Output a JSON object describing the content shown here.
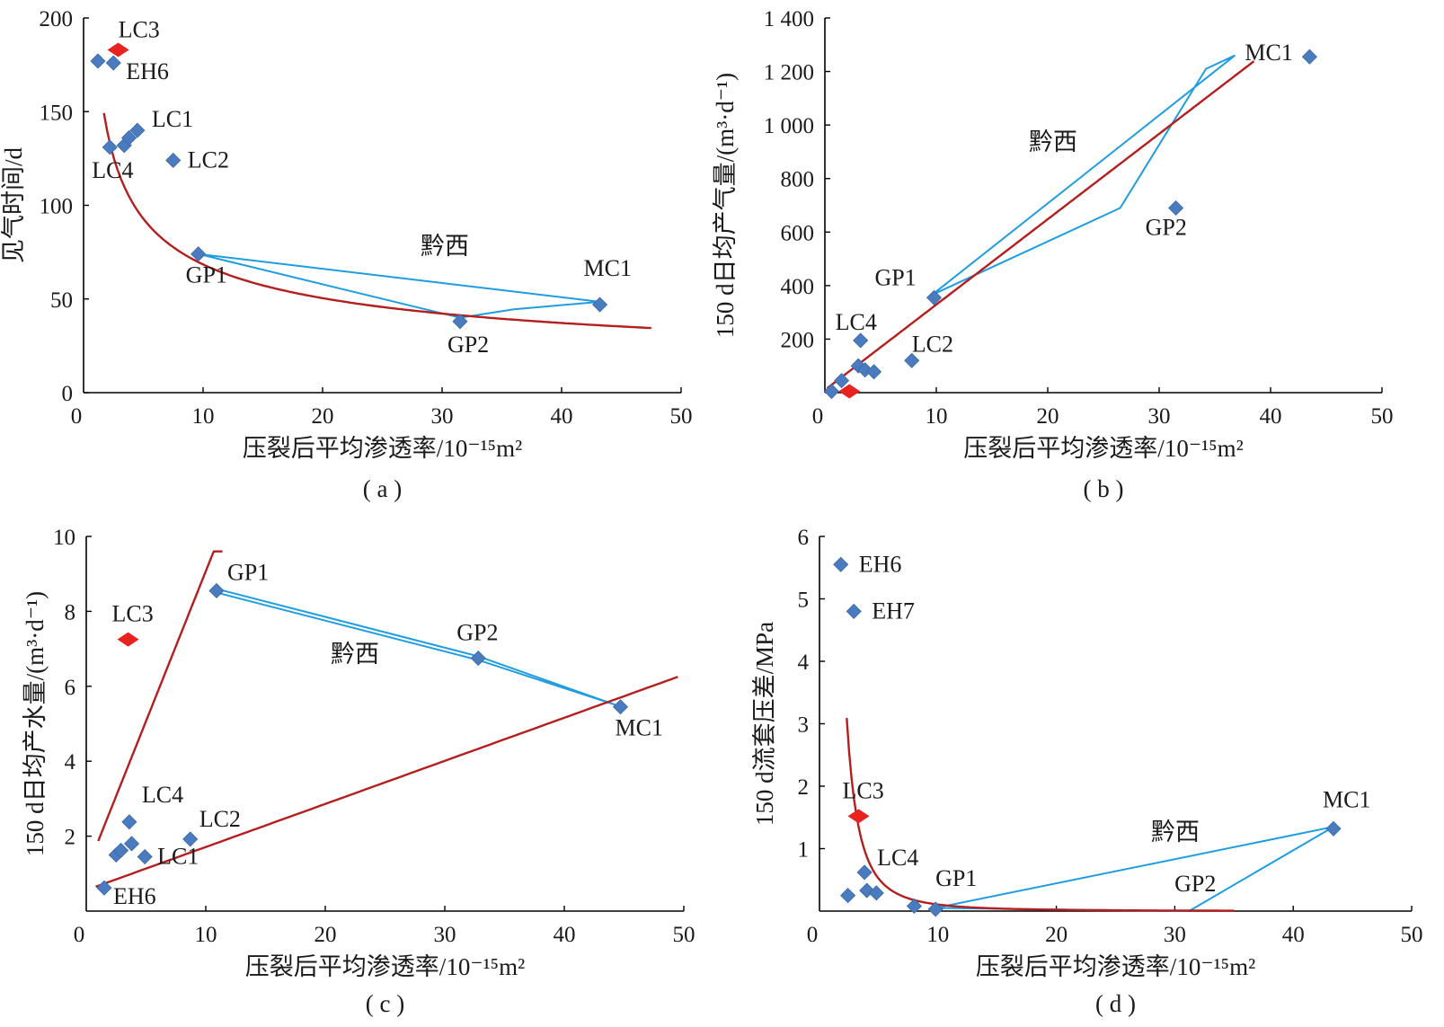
{
  "chart_data": [
    {
      "id": "a",
      "type": "scatter",
      "caption": "( a )",
      "xlabel": "压裂后平均渗透率/10⁻¹⁵m²",
      "ylabel": "见气时间/d",
      "xlim": [
        0,
        50
      ],
      "ylim": [
        0,
        200
      ],
      "xticks": [
        "10",
        "20",
        "30",
        "40",
        "50"
      ],
      "xzero": "0",
      "yticks": [
        "0",
        "50",
        "100",
        "150",
        "200"
      ],
      "grid": false,
      "legend": "none",
      "colors": {
        "point": "#4a7bbf",
        "highlight": "#e8231f",
        "fit": "#b41e1e",
        "envelope": "#1f9de0"
      },
      "points": [
        {
          "x": 1.2,
          "y": 177,
          "label": ""
        },
        {
          "x": 2.5,
          "y": 176,
          "label": "EH6"
        },
        {
          "x": 2.2,
          "y": 131,
          "label": "LC4"
        },
        {
          "x": 3.4,
          "y": 132,
          "label": ""
        },
        {
          "x": 3.8,
          "y": 136,
          "label": ""
        },
        {
          "x": 4.5,
          "y": 140,
          "label": "LC1"
        },
        {
          "x": 7.5,
          "y": 124,
          "label": "LC2"
        },
        {
          "x": 9.6,
          "y": 74,
          "label": "GP1"
        },
        {
          "x": 31.5,
          "y": 38,
          "label": "GP2"
        },
        {
          "x": 43.2,
          "y": 47,
          "label": "MC1"
        }
      ],
      "highlight": {
        "x": 2.9,
        "y": 183,
        "label": "LC3"
      },
      "region_label": "黔西",
      "fit_curves": [
        {
          "type": "power",
          "a": 188.5,
          "b": -0.44,
          "x_range": [
            1.7,
            47.5
          ]
        }
      ],
      "envelope": [
        [
          9.6,
          74
        ],
        [
          31.5,
          40
        ],
        [
          36,
          44.5
        ],
        [
          43.2,
          48.5
        ],
        [
          9.6,
          74
        ]
      ]
    },
    {
      "id": "b",
      "type": "scatter",
      "caption": "( b )",
      "xlabel": "压裂后平均渗透率/10⁻¹⁵m²",
      "ylabel": "150 d日均产气量/(m³·d⁻¹)",
      "xlim": [
        0,
        50
      ],
      "ylim": [
        0,
        1400
      ],
      "xticks": [
        "10",
        "20",
        "30",
        "40",
        "50"
      ],
      "xzero": "0",
      "yticks": [
        "200",
        "400",
        "600",
        "800",
        "1 000",
        "1 200",
        "1 400"
      ],
      "grid": false,
      "legend": "none",
      "colors": {
        "point": "#4a7bbf",
        "highlight": "#e8231f",
        "fit": "#b41e1e",
        "envelope": "#1f9de0"
      },
      "points": [
        {
          "x": 0.6,
          "y": 5,
          "label": ""
        },
        {
          "x": 1.5,
          "y": 45,
          "label": ""
        },
        {
          "x": 3.2,
          "y": 195,
          "label": "LC4"
        },
        {
          "x": 3.0,
          "y": 100,
          "label": ""
        },
        {
          "x": 3.6,
          "y": 85,
          "label": ""
        },
        {
          "x": 4.4,
          "y": 78,
          "label": ""
        },
        {
          "x": 7.8,
          "y": 120,
          "label": "LC2"
        },
        {
          "x": 9.8,
          "y": 355,
          "label": "GP1"
        },
        {
          "x": 31.5,
          "y": 690,
          "label": "GP2"
        },
        {
          "x": 43.5,
          "y": 1255,
          "label": "MC1"
        }
      ],
      "highlight": {
        "x": 2.2,
        "y": 5,
        "label": ""
      },
      "region_label": "黔西",
      "fit_curves": [
        {
          "type": "linear",
          "a": 31.9,
          "b": 10,
          "x_range": [
            0.2,
            38.5
          ]
        }
      ],
      "envelope": [
        [
          9.6,
          365
        ],
        [
          36.8,
          1260
        ],
        [
          34.2,
          1210
        ],
        [
          26.5,
          690
        ],
        [
          9.6,
          365
        ]
      ]
    },
    {
      "id": "c",
      "type": "scatter",
      "caption": "( c )",
      "xlabel": "压裂后平均渗透率/10⁻¹⁵m²",
      "ylabel": "150 d日均产水量/(m³·d⁻¹)",
      "xlim": [
        0,
        50
      ],
      "ylim": [
        0,
        10
      ],
      "xticks": [
        "10",
        "20",
        "30",
        "40",
        "50"
      ],
      "xzero": "0",
      "yticks": [
        "2",
        "4",
        "6",
        "8",
        "10"
      ],
      "grid": false,
      "legend": "none",
      "colors": {
        "point": "#4a7bbf",
        "highlight": "#e8231f",
        "fit": "#b41e1e",
        "envelope": "#1f9de0"
      },
      "points": [
        {
          "x": 1.5,
          "y": 0.62,
          "label": "EH6"
        },
        {
          "x": 2.5,
          "y": 1.5,
          "label": ""
        },
        {
          "x": 2.9,
          "y": 1.62,
          "label": ""
        },
        {
          "x": 3.8,
          "y": 1.8,
          "label": ""
        },
        {
          "x": 3.6,
          "y": 2.38,
          "label": "LC4"
        },
        {
          "x": 4.9,
          "y": 1.45,
          "label": "LC1"
        },
        {
          "x": 8.7,
          "y": 1.92,
          "label": "LC2"
        },
        {
          "x": 10.9,
          "y": 8.55,
          "label": "GP1"
        },
        {
          "x": 32.8,
          "y": 6.75,
          "label": "GP2"
        },
        {
          "x": 44.7,
          "y": 5.45,
          "label": "MC1"
        }
      ],
      "highlight": {
        "x": 3.5,
        "y": 7.25,
        "label": "LC3"
      },
      "region_label": "黔西",
      "fit_curves": [
        {
          "type": "linear",
          "a": 0.8,
          "b": 1.07,
          "x_range": [
            1.0,
            11.4
          ]
        },
        {
          "type": "linear",
          "a": 0.115,
          "b": 0.56,
          "x_range": [
            0.8,
            49.5
          ]
        }
      ],
      "envelope": [
        [
          10.9,
          8.6
        ],
        [
          32.8,
          6.8
        ],
        [
          44.3,
          5.5
        ],
        [
          32.8,
          6.7
        ],
        [
          10.9,
          8.5
        ]
      ]
    },
    {
      "id": "d",
      "type": "scatter",
      "caption": "( d )",
      "xlabel": "压裂后平均渗透率/10⁻¹⁵m²",
      "ylabel": "150 d流套压差/MPa",
      "xlim": [
        0,
        50
      ],
      "ylim": [
        0,
        6
      ],
      "xticks": [
        "10",
        "20",
        "30",
        "40",
        "50"
      ],
      "xzero": "0",
      "yticks": [
        "1",
        "2",
        "3",
        "4",
        "5",
        "6"
      ],
      "grid": false,
      "legend": "none",
      "colors": {
        "point": "#4a7bbf",
        "highlight": "#e8231f",
        "fit": "#b41e1e",
        "envelope": "#1f9de0"
      },
      "points": [
        {
          "x": 1.8,
          "y": 5.55,
          "label": "EH6"
        },
        {
          "x": 2.9,
          "y": 4.8,
          "label": "EH7"
        },
        {
          "x": 2.4,
          "y": 0.25,
          "label": ""
        },
        {
          "x": 3.8,
          "y": 0.62,
          "label": "LC4"
        },
        {
          "x": 4.0,
          "y": 0.33,
          "label": ""
        },
        {
          "x": 4.8,
          "y": 0.29,
          "label": ""
        },
        {
          "x": 8.0,
          "y": 0.08,
          "label": ""
        },
        {
          "x": 9.8,
          "y": 0.03,
          "label": "GP1"
        },
        {
          "x": 43.4,
          "y": 1.32,
          "label": "MC1"
        }
      ],
      "highlight": {
        "x": 3.3,
        "y": 1.52,
        "label": "LC3"
      },
      "region_label": "黔西",
      "extra_labels": [
        {
          "x": 31.5,
          "y": 0.0,
          "label": "GP2"
        }
      ],
      "fit_curves": [
        {
          "type": "power",
          "a": 21.0,
          "b": -2.3,
          "x_range": [
            2.3,
            35
          ]
        }
      ],
      "envelope": [
        [
          9.8,
          0.05
        ],
        [
          43.4,
          1.35
        ],
        [
          31.2,
          0.0
        ],
        [
          9.8,
          0.05
        ]
      ]
    }
  ]
}
